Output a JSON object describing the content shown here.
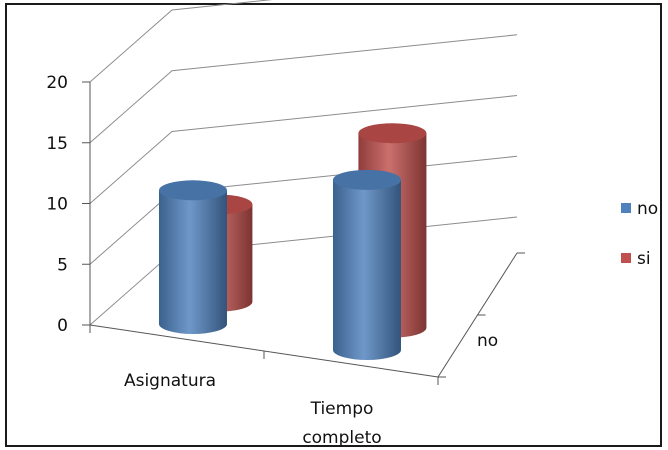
{
  "chart_data": {
    "type": "bar",
    "title": "",
    "xlabel": "",
    "ylabel": "",
    "categories": [
      "Asignatura",
      "Tiempo completo"
    ],
    "depth_categories": [
      "no"
    ],
    "ylim": [
      0,
      20
    ],
    "yticks": [
      "0",
      "5",
      "10",
      "15",
      "20"
    ],
    "series": [
      {
        "name": "no",
        "color": "#4f81bd",
        "values": [
          11,
          14
        ]
      },
      {
        "name": "si",
        "color": "#c0504d",
        "values": [
          8,
          16
        ]
      }
    ],
    "grid": true,
    "legend_position": "right",
    "style": "3d-cylinder"
  }
}
